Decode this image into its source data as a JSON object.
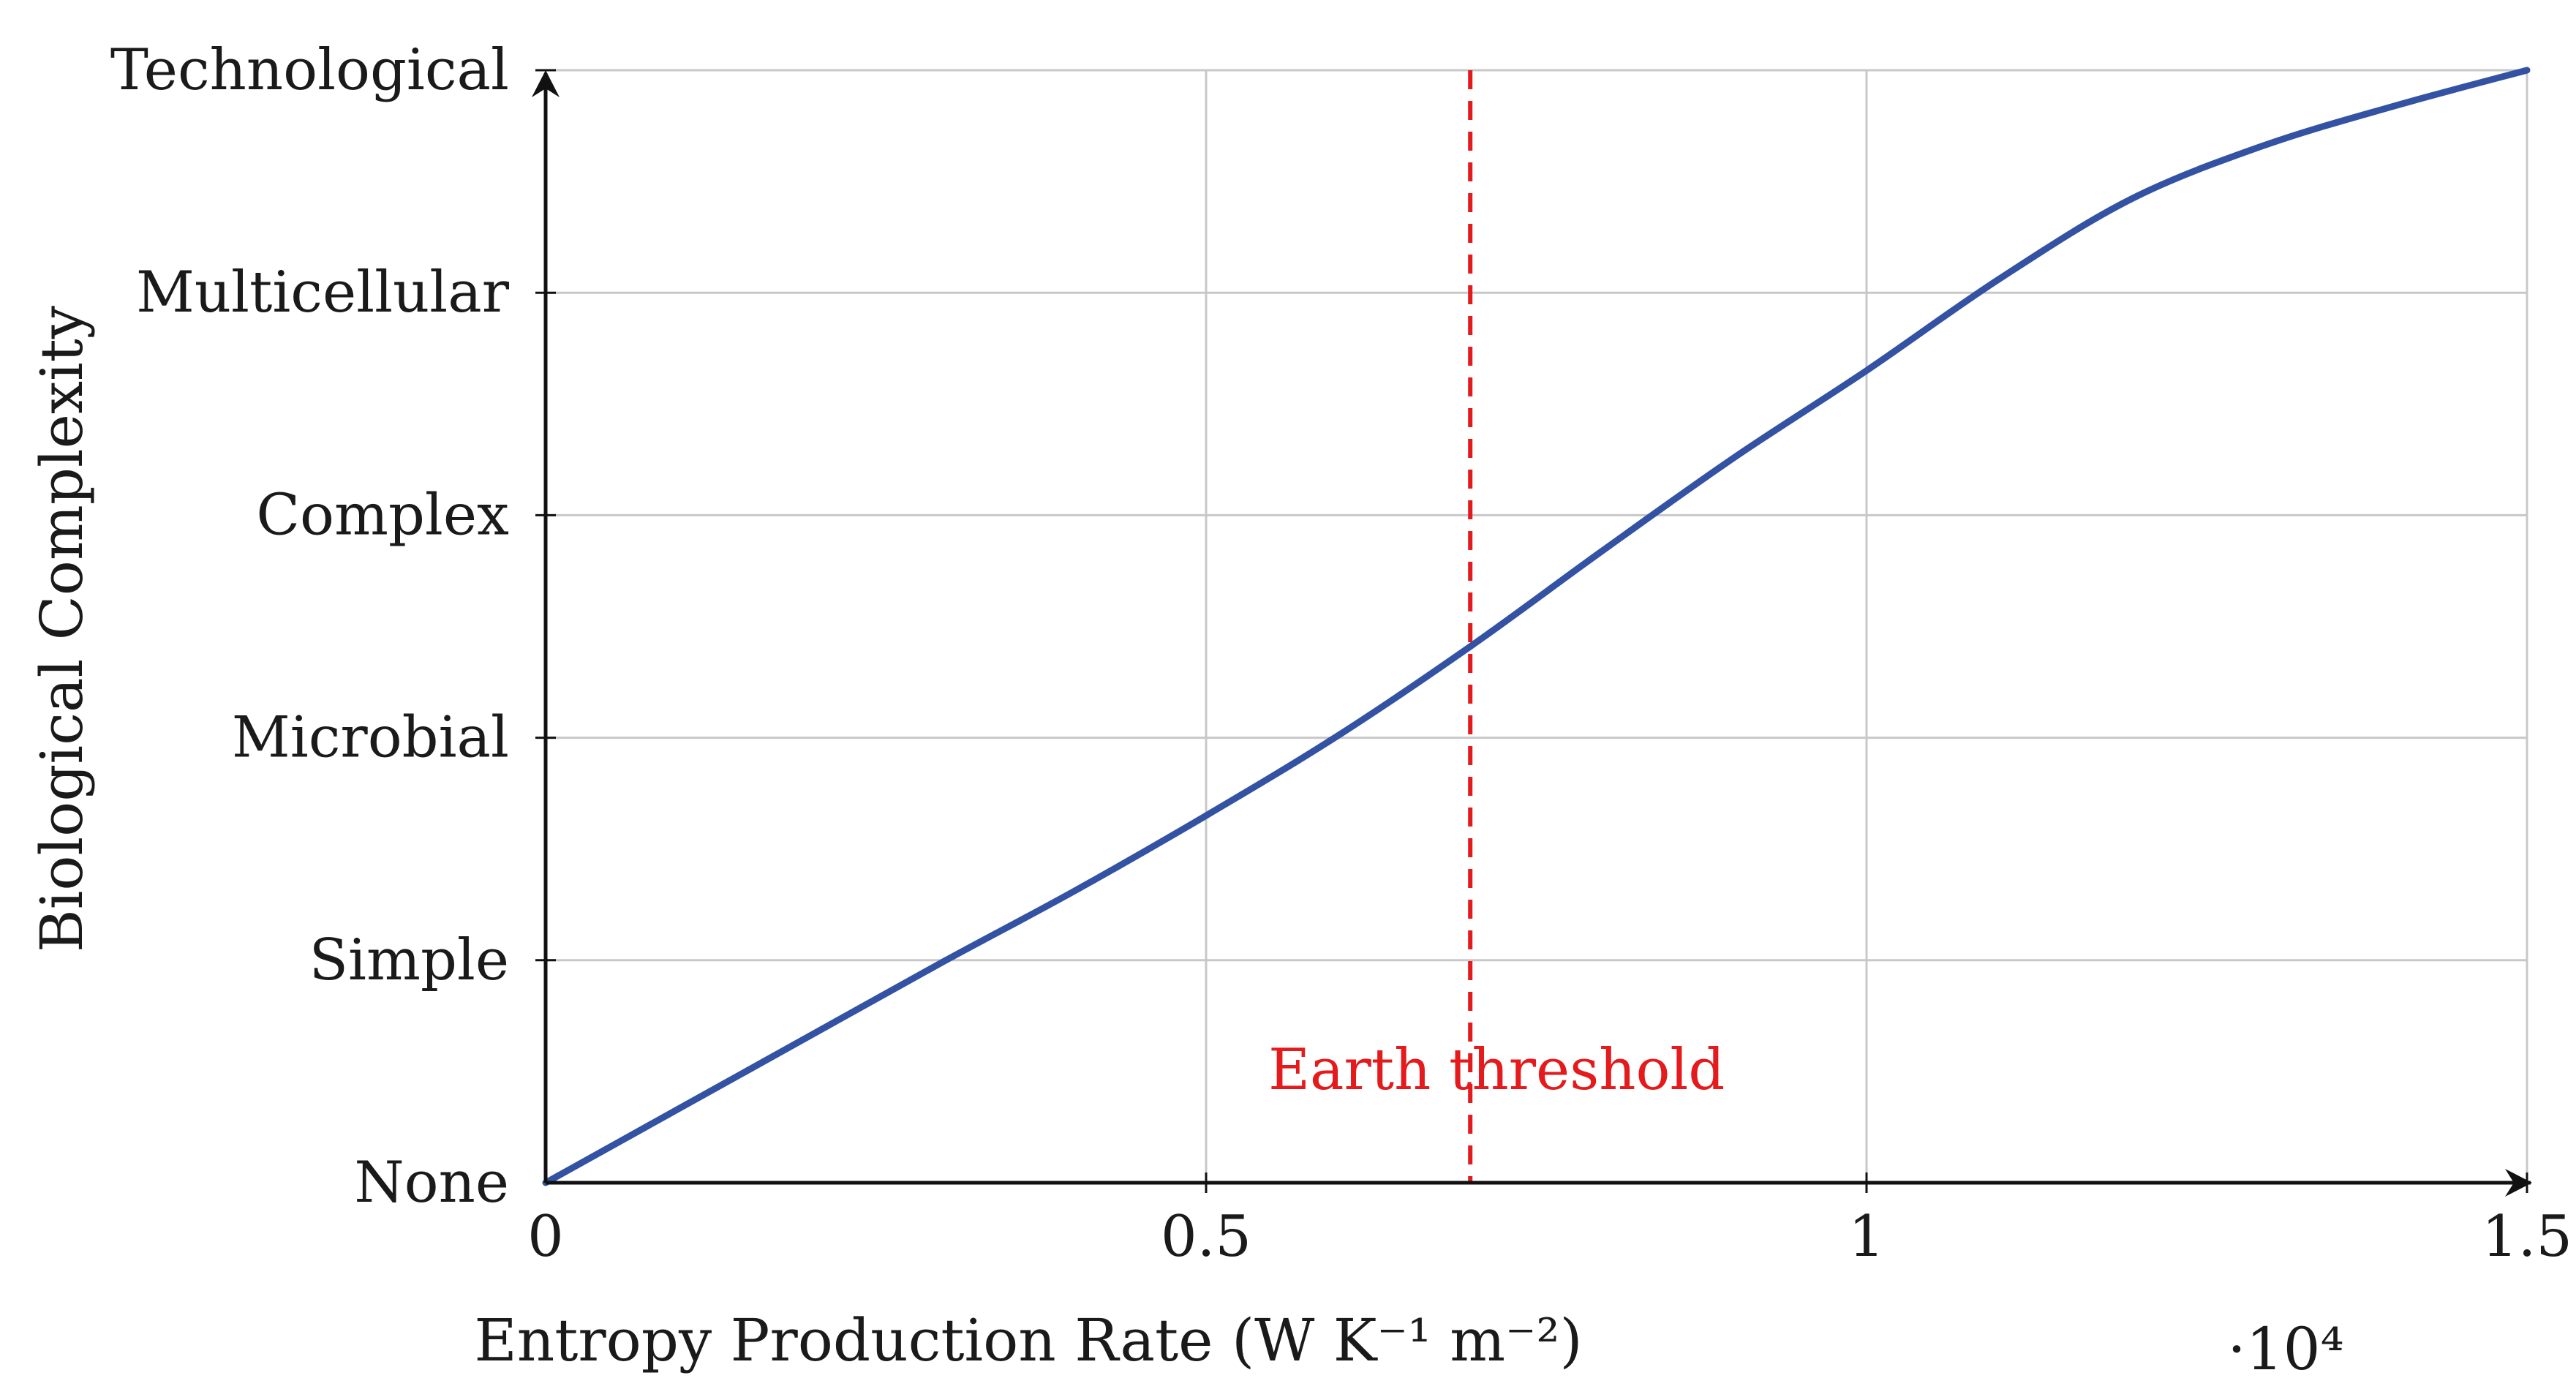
{
  "chart_data": {
    "type": "line",
    "xlabel": "Entropy Production Rate (W K⁻¹ m⁻²)",
    "ylabel": "Biological Complexity",
    "x_multiplier": "·10⁴",
    "xlim": [
      0,
      15000
    ],
    "ylim": [
      0,
      5
    ],
    "x_ticks": [
      0,
      5000,
      10000,
      15000
    ],
    "x_tick_labels": [
      "0",
      "0.5",
      "1",
      "1.5"
    ],
    "y_ticks": [
      0,
      1,
      2,
      3,
      4,
      5
    ],
    "y_tick_labels": [
      "None",
      "Simple",
      "Microbial",
      "Complex",
      "Multicellular",
      "Technological"
    ],
    "grid": true,
    "series": [
      {
        "color": "#3352a3",
        "x": [
          0,
          1000,
          2000,
          3000,
          4000,
          5000,
          6000,
          7000,
          8000,
          9000,
          10000,
          11000,
          12000,
          13000,
          14000,
          15000
        ],
        "y": [
          0,
          0.33,
          0.66,
          0.99,
          1.31,
          1.65,
          2.01,
          2.41,
          2.84,
          3.26,
          3.65,
          4.06,
          4.42,
          4.66,
          4.84,
          5.0
        ]
      }
    ],
    "vline": {
      "x": 7000,
      "color": "#e41a1c",
      "style": "dashed",
      "label": "Earth threshold"
    }
  }
}
